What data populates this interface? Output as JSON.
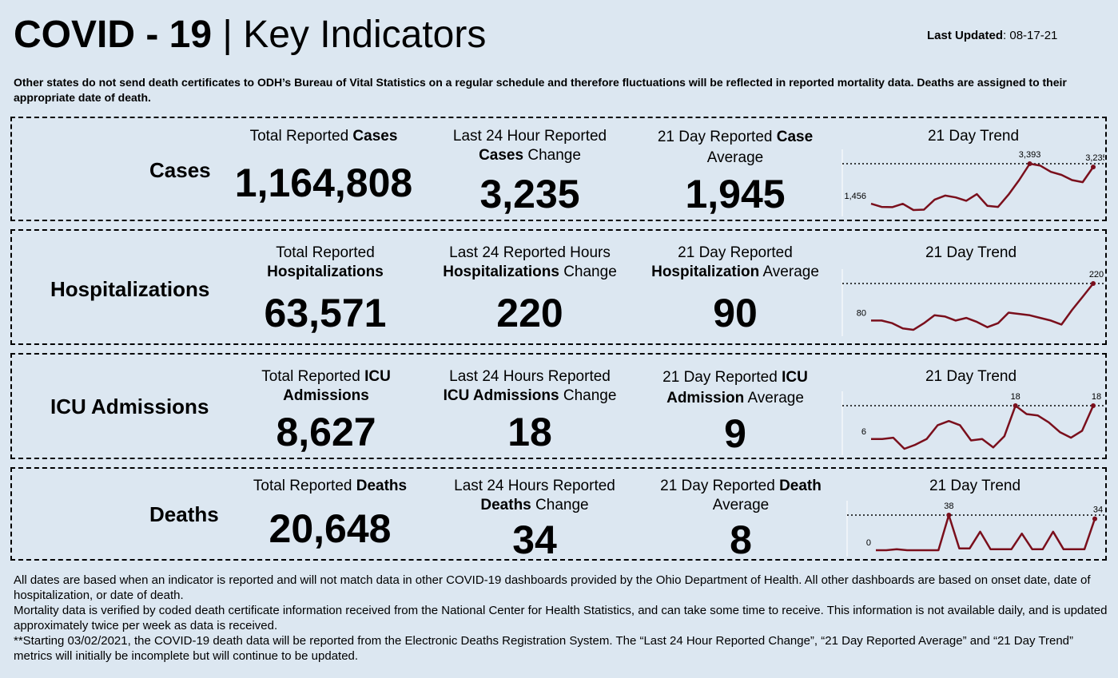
{
  "header": {
    "title_bold": "COVID - 19",
    "title_sep": " | ",
    "title_rest": "Key Indicators",
    "updated_label": "Last Updated",
    "updated_value": ": 08-17-21"
  },
  "note": "Other states do not send death certificates to ODH’s Bureau of Vital Statistics on a regular schedule and therefore fluctuations will be reflected in reported mortality data. Deaths are assigned to their appropriate date of death.",
  "panels": [
    {
      "label": "Cases",
      "c1": {
        "head_a": "Total Reported ",
        "head_b": "Cases",
        "head_c": "",
        "head_d": "",
        "value": "1,164,808"
      },
      "c2": {
        "head_a": "Last 24 Hour Reported",
        "head_b": "Cases",
        "head_c": " Change",
        "head_d": "",
        "value": "3,235"
      },
      "c3": {
        "head_a": "21 Day Reported ",
        "head_b": "Case",
        "head_c": "Average",
        "head_d": "",
        "value": "1,945"
      },
      "trend": "21 Day Trend"
    },
    {
      "label": "Hospitalizations",
      "c1": {
        "head_a": "Total Reported",
        "head_b": "Hospitalizations",
        "head_c": "",
        "head_d": "",
        "value": "63,571"
      },
      "c2": {
        "head_a": "Last 24 Reported Hours",
        "head_b": "Hospitalizations",
        "head_c": " Change",
        "head_d": "",
        "value": "220"
      },
      "c3": {
        "head_a": "21 Day Reported",
        "head_b": "Hospitalization",
        "head_c": " Average",
        "head_d": "",
        "value": "90"
      },
      "trend": "21 Day Trend"
    },
    {
      "label": "ICU Admissions",
      "c1": {
        "head_a": "Total Reported ",
        "head_b": "ICU",
        "head_c": "Admissions",
        "head_d": "",
        "value": "8,627"
      },
      "c2": {
        "head_a": "Last 24 Hours Reported",
        "head_b": "ICU Admissions",
        "head_c": " Change",
        "head_d": "",
        "value": "18"
      },
      "c3": {
        "head_a": "21 Day Reported ",
        "head_b": "ICU",
        "head_c": "Admission",
        "head_d": " Average",
        "value": "9"
      },
      "trend": "21 Day Trend"
    },
    {
      "label": "Deaths",
      "c1": {
        "head_a": "Total Reported ",
        "head_b": "Deaths",
        "head_c": "",
        "head_d": "",
        "value": "20,648"
      },
      "c2": {
        "head_a": "Last 24 Hours Reported",
        "head_b": "Deaths",
        "head_c": " Change",
        "head_d": "",
        "value": "34"
      },
      "c3": {
        "head_a": "21 Day Reported ",
        "head_b": "Death",
        "head_c": "Average",
        "head_d": "",
        "value": "8"
      },
      "trend": "21 Day Trend"
    }
  ],
  "chart_data": [
    {
      "type": "line",
      "series": [
        {
          "values": [
            1456,
            1300,
            1290,
            1450,
            1150,
            1170,
            1650,
            1850,
            1760,
            1600,
            1920,
            1350,
            1300,
            1900,
            2600,
            3393,
            3300,
            3000,
            2850,
            2600,
            2500,
            3235
          ]
        }
      ],
      "annotations": [
        "1,456",
        "3,393",
        "3,235"
      ],
      "reference_line": 3393,
      "color": "#7a0f1c"
    },
    {
      "type": "line",
      "series": [
        {
          "values": [
            80,
            80,
            70,
            50,
            45,
            70,
            100,
            95,
            80,
            90,
            75,
            55,
            70,
            110,
            105,
            100,
            90,
            80,
            65,
            120,
            170,
            220
          ]
        }
      ],
      "annotations": [
        "80",
        "220"
      ],
      "reference_line": 220,
      "color": "#7a0f1c"
    },
    {
      "type": "line",
      "series": [
        {
          "values": [
            6,
            6,
            6.5,
            2.5,
            4,
            6,
            11,
            12.5,
            11,
            5.5,
            6,
            3,
            7,
            18,
            15,
            14.5,
            12,
            8.5,
            6.5,
            9,
            18
          ]
        }
      ],
      "annotations": [
        "6",
        "18",
        "18"
      ],
      "reference_line": 18,
      "color": "#7a0f1c"
    },
    {
      "type": "line",
      "series": [
        {
          "values": [
            0,
            0,
            1,
            0,
            0,
            0,
            0,
            38,
            2,
            2,
            20,
            1,
            1,
            1,
            18,
            1,
            1,
            20,
            1,
            1,
            1,
            34
          ]
        }
      ],
      "annotations": [
        "0",
        "38",
        "34"
      ],
      "reference_line": 38,
      "color": "#7a0f1c"
    }
  ],
  "footer": [
    "All dates are based when an indicator is reported and will not match data in other COVID-19 dashboards provided by the Ohio Department of Health. All other dashboards are based on onset date, date of hospitalization, or date of death.",
    "Mortality data is verified by coded death certificate information received from the National Center for Health Statistics, and can take some time to receive. This information is not available daily, and is updated approximately twice per week as data is received.",
    "**Starting 03/02/2021, the COVID-19 death data will be reported from the Electronic Deaths Registration System. The “Last 24 Hour Reported Change”, “21 Day Reported Average” and “21 Day Trend” metrics will initially be incomplete but will continue to be updated."
  ]
}
